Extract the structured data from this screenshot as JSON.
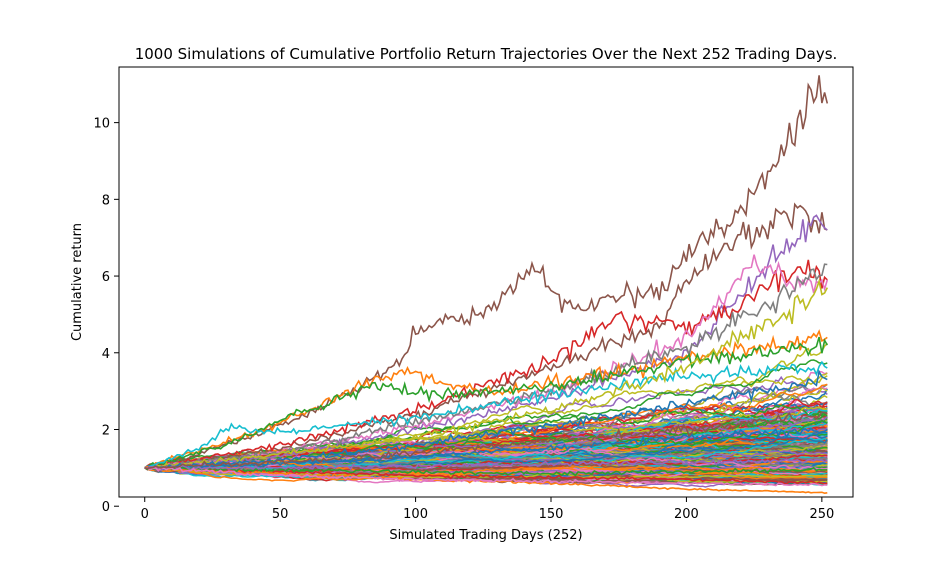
{
  "chart_data": {
    "type": "line",
    "title": "1000 Simulations of Cumulative Portfolio Return Trajectories Over the Next 252 Trading Days.",
    "xlabel": "Simulated Trading Days (252)",
    "ylabel": "Cumulative return",
    "xlim": [
      -9.5,
      261.5
    ],
    "ylim": [
      0.24,
      11.45
    ],
    "x_ticks": [
      0,
      50,
      100,
      150,
      200,
      250
    ],
    "y_ticks": [
      0,
      2,
      4,
      6,
      8,
      10
    ],
    "grid": false,
    "legend": "none",
    "n_simulations": 1000,
    "n_days": 252,
    "colors": [
      "#1f77b4",
      "#ff7f0e",
      "#2ca02c",
      "#d62728",
      "#9467bd",
      "#8c564b",
      "#e377c2",
      "#7f7f7f",
      "#bcbd22",
      "#17becf"
    ],
    "series": [
      {
        "color": "#8c564b",
        "x": [
          0,
          20,
          40,
          60,
          80,
          95,
          100,
          110,
          125,
          140,
          145,
          150,
          160,
          175,
          190,
          205,
          215,
          230,
          240,
          248,
          252
        ],
        "y": [
          1,
          1.35,
          1.85,
          2.4,
          3.1,
          3.8,
          4.6,
          4.75,
          5.1,
          5.9,
          6.45,
          5.6,
          5.15,
          5.5,
          5.6,
          6.9,
          7.3,
          8.6,
          9.6,
          10.9,
          10.5
        ]
      },
      {
        "color": "#8c564b",
        "x": [
          0,
          50,
          100,
          150,
          190,
          200,
          215,
          230,
          240,
          252
        ],
        "y": [
          1,
          1.5,
          2.4,
          3.6,
          4.7,
          5.9,
          6.8,
          7.3,
          7.75,
          7.2
        ]
      },
      {
        "color": "#9467bd",
        "x": [
          0,
          50,
          100,
          150,
          200,
          215,
          230,
          240,
          248,
          252
        ],
        "y": [
          1,
          1.3,
          2.0,
          2.8,
          4.0,
          5.1,
          6.3,
          6.9,
          7.5,
          7.2
        ]
      },
      {
        "color": "#d62728",
        "x": [
          0,
          50,
          100,
          150,
          175,
          200,
          220,
          235,
          245,
          252
        ],
        "y": [
          1,
          1.6,
          2.5,
          3.8,
          4.9,
          4.7,
          5.3,
          6.0,
          6.2,
          5.9
        ]
      },
      {
        "color": "#e377c2",
        "x": [
          0,
          50,
          100,
          150,
          200,
          215,
          225,
          240,
          252
        ],
        "y": [
          1,
          1.4,
          2.1,
          3.0,
          4.3,
          5.6,
          6.4,
          5.7,
          5.9
        ]
      },
      {
        "color": "#7f7f7f",
        "x": [
          0,
          50,
          100,
          150,
          200,
          230,
          252
        ],
        "y": [
          1,
          1.4,
          2.2,
          3.0,
          4.1,
          5.2,
          6.3
        ]
      },
      {
        "color": "#ff7f0e",
        "x": [
          0,
          40,
          70,
          95,
          110,
          130,
          160,
          200,
          252
        ],
        "y": [
          1,
          1.9,
          2.8,
          3.55,
          3.2,
          3.0,
          3.3,
          3.9,
          4.4
        ]
      },
      {
        "color": "#2ca02c",
        "x": [
          0,
          30,
          60,
          85,
          110,
          150,
          200,
          252
        ],
        "y": [
          1,
          1.6,
          2.5,
          3.2,
          2.9,
          3.1,
          3.8,
          4.2
        ]
      },
      {
        "color": "#17becf",
        "x": [
          0,
          20,
          32,
          45,
          60,
          100,
          150,
          200,
          252
        ],
        "y": [
          1,
          1.5,
          2.1,
          1.9,
          2.0,
          2.3,
          2.9,
          3.4,
          3.6
        ]
      },
      {
        "color": "#bcbd22",
        "x": [
          0,
          50,
          100,
          150,
          200,
          252
        ],
        "y": [
          1,
          1.35,
          1.8,
          2.5,
          3.6,
          5.7
        ]
      },
      {
        "color": "#1f77b4",
        "x": [
          0,
          50,
          100,
          150,
          200,
          252
        ],
        "y": [
          1,
          1.2,
          1.6,
          2.1,
          2.7,
          3.3
        ]
      },
      {
        "color": "#1f77b4",
        "x": [
          0,
          50,
          100,
          150,
          200,
          252
        ],
        "y": [
          1,
          1.1,
          1.3,
          1.5,
          1.8,
          2.0
        ]
      },
      {
        "color": "#d62728",
        "x": [
          0,
          50,
          100,
          150,
          200,
          252
        ],
        "y": [
          1,
          0.9,
          0.8,
          0.75,
          0.7,
          0.6
        ]
      },
      {
        "color": "#ff7f0e",
        "x": [
          0,
          50,
          100,
          150,
          200,
          252
        ],
        "y": [
          1,
          0.85,
          0.7,
          0.6,
          0.45,
          0.35
        ]
      },
      {
        "color": "#2ca02c",
        "x": [
          0,
          50,
          100,
          150,
          200,
          252
        ],
        "y": [
          1,
          0.95,
          0.9,
          0.85,
          0.9,
          0.95
        ]
      },
      {
        "color": "#9467bd",
        "x": [
          0,
          50,
          100,
          150,
          200,
          252
        ],
        "y": [
          1,
          1.0,
          1.05,
          1.1,
          1.15,
          1.2
        ]
      },
      {
        "color": "#e377c2",
        "x": [
          0,
          50,
          100,
          150,
          200,
          252
        ],
        "y": [
          1,
          0.8,
          0.7,
          0.65,
          0.6,
          0.55
        ]
      },
      {
        "color": "#8c564b",
        "x": [
          0,
          50,
          100,
          150,
          200,
          252
        ],
        "y": [
          1,
          1.15,
          1.4,
          1.7,
          2.0,
          2.4
        ]
      }
    ]
  }
}
